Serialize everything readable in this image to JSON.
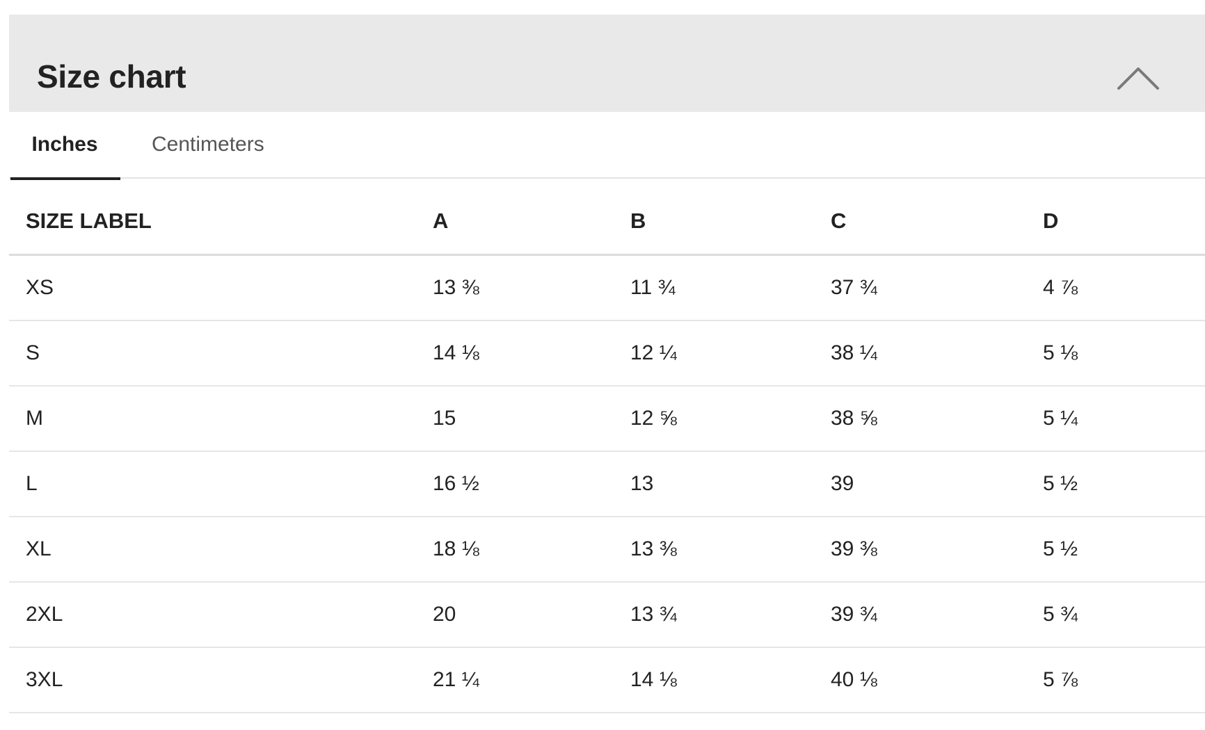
{
  "header": {
    "title": "Size chart",
    "toggle_icon": "chevron-up-icon"
  },
  "tabs": [
    {
      "label": "Inches",
      "active": true
    },
    {
      "label": "Centimeters",
      "active": false
    }
  ],
  "table": {
    "columns": [
      "SIZE LABEL",
      "A",
      "B",
      "C",
      "D"
    ],
    "rows": [
      [
        "XS",
        "13 ⅜",
        "11 ¾",
        "37 ¾",
        "4 ⅞"
      ],
      [
        "S",
        "14 ⅛",
        "12 ¼",
        "38 ¼",
        "5 ⅛"
      ],
      [
        "M",
        "15",
        "12 ⅝",
        "38 ⅝",
        "5 ¼"
      ],
      [
        "L",
        "16 ½",
        "13",
        "39",
        "5 ½"
      ],
      [
        "XL",
        "18 ⅛",
        "13 ⅜",
        "39 ⅜",
        "5 ½"
      ],
      [
        "2XL",
        "20",
        "13 ¾",
        "39 ¾",
        "5 ¾"
      ],
      [
        "3XL",
        "21 ¼",
        "14 ⅛",
        "40 ⅛",
        "5 ⅞"
      ]
    ]
  },
  "colors": {
    "header_bg": "#e9e9e9",
    "text": "#222222",
    "inactive_tab": "#555555",
    "divider": "#e6e6e6"
  }
}
